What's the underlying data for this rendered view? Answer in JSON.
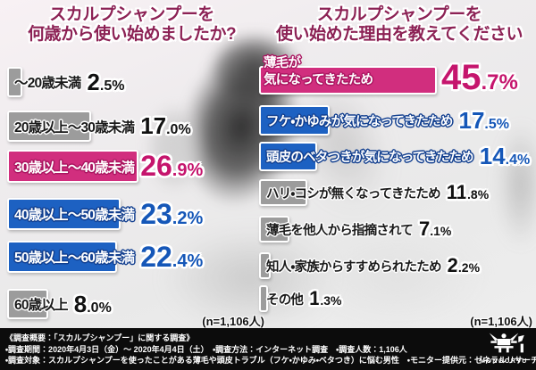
{
  "colors": {
    "accent_pink": "#d12e7e",
    "accent_blue": "#1d61c2",
    "bar_grey": "#9c9c9c",
    "title_maroon": "#8c2255",
    "pink_value": "#c5156d",
    "blue_value": "#1557b8",
    "footer_bg": "#0c0c0c"
  },
  "left_chart": {
    "title_line1": "スカルプシャンプーを",
    "title_line2": "何歳から使い始めましたか?",
    "sample_note": "(n=1,106人)",
    "rows": [
      {
        "label": "〜20歳未満",
        "pct": 2.5,
        "value_int": "2",
        "value_frac": ".5%"
      },
      {
        "label": "20歳以上〜30歳未満",
        "pct": 17.0,
        "value_int": "17",
        "value_frac": ".0%"
      },
      {
        "label": "30歳以上〜40歳未満",
        "pct": 26.9,
        "value_int": "26",
        "value_frac": ".9%"
      },
      {
        "label": "40歳以上〜50歳未満",
        "pct": 23.2,
        "value_int": "23",
        "value_frac": ".2%"
      },
      {
        "label": "50歳以上〜60歳未満",
        "pct": 22.4,
        "value_int": "22",
        "value_frac": ".4%"
      },
      {
        "label": "60歳以上",
        "pct": 8.0,
        "value_int": "8",
        "value_frac": ".0%"
      }
    ]
  },
  "right_chart": {
    "title_line1": "スカルプシャンプーを",
    "title_line2": "使い始めた理由を教えてください",
    "sample_note": "(n=1,106人)",
    "rows": [
      {
        "label_line1": "薄毛が",
        "label_line2": "気になってきたため",
        "pct": 45.7,
        "value_int": "45",
        "value_frac": ".7%"
      },
      {
        "label": "フケ・かゆみが気になってきたため",
        "pct": 17.5,
        "value_int": "17",
        "value_frac": ".5%"
      },
      {
        "label": "頭皮のベタつきが気になってきたため",
        "pct": 14.4,
        "value_int": "14",
        "value_frac": ".4%"
      },
      {
        "label": "ハリ・コシが無くなってきたため",
        "pct": 11.8,
        "value_int": "11",
        "value_frac": ".8%"
      },
      {
        "label": "薄毛を他人から指摘されて",
        "pct": 7.1,
        "value_int": "7",
        "value_frac": ".1%"
      },
      {
        "label": "知人・家族からすすめられたため",
        "pct": 2.2,
        "value_int": "2",
        "value_frac": ".2%"
      },
      {
        "label": "その他",
        "pct": 1.3,
        "value_int": "1",
        "value_frac": ".3%"
      }
    ]
  },
  "footer": {
    "line1": "《調査概要：「スカルプシャンプー」に関する調査》",
    "line2": "・調査期間：2020年4月3日（金）〜 2020年4月4日（土）　・調査方法：インターネット調査　・調査人数：1,106人",
    "line3": "・調査対象：スカルプシャンプーを使ったことがある薄毛や頭皮トラブル（フケ・かゆみ・ベタつき）に悩む男性　・モニター提供元：ゼネラルリサーチ",
    "logo_text": "MONGORYU"
  },
  "chart_data": [
    {
      "type": "bar",
      "orientation": "horizontal",
      "title": "スカルプシャンプーを何歳から使い始めましたか?",
      "categories": [
        "〜20歳未満",
        "20歳以上〜30歳未満",
        "30歳以上〜40歳未満",
        "40歳以上〜50歳未満",
        "50歳以上〜60歳未満",
        "60歳以上"
      ],
      "values": [
        2.5,
        17.0,
        26.9,
        23.2,
        22.4,
        8.0
      ],
      "unit": "%",
      "sample_note": "(n=1,106人)",
      "highlight_category": "30歳以上〜40歳未満",
      "xlim": [
        0,
        50
      ],
      "grid": false,
      "legend": false
    },
    {
      "type": "bar",
      "orientation": "horizontal",
      "title": "スカルプシャンプーを使い始めた理由を教えてください",
      "categories": [
        "薄毛が気になってきたため",
        "フケ・かゆみが気になってきたため",
        "頭皮のベタつきが気になってきたため",
        "ハリ・コシが無くなってきたため",
        "薄毛を他人から指摘されて",
        "知人・家族からすすめられたため",
        "その他"
      ],
      "values": [
        45.7,
        17.5,
        14.4,
        11.8,
        7.1,
        2.2,
        1.3
      ],
      "unit": "%",
      "sample_note": "(n=1,106人)",
      "highlight_category": "薄毛が気になってきたため",
      "xlim": [
        0,
        50
      ],
      "grid": false,
      "legend": false
    }
  ]
}
